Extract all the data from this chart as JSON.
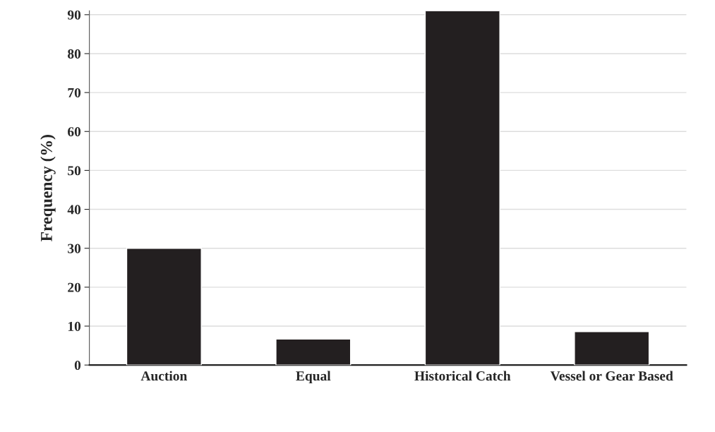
{
  "chart_data": {
    "type": "bar",
    "ylabel": "Frequency (%)",
    "categories": [
      "Auction",
      "Equal",
      "Historical Catch",
      "Vessel or Gear Based"
    ],
    "values": [
      30,
      6.7,
      91,
      8.6
    ],
    "color": "#231f20",
    "ylim": [
      0,
      91
    ],
    "yticks": [
      0,
      10,
      20,
      30,
      40,
      50,
      60,
      70,
      80,
      90
    ],
    "grid": "y"
  }
}
